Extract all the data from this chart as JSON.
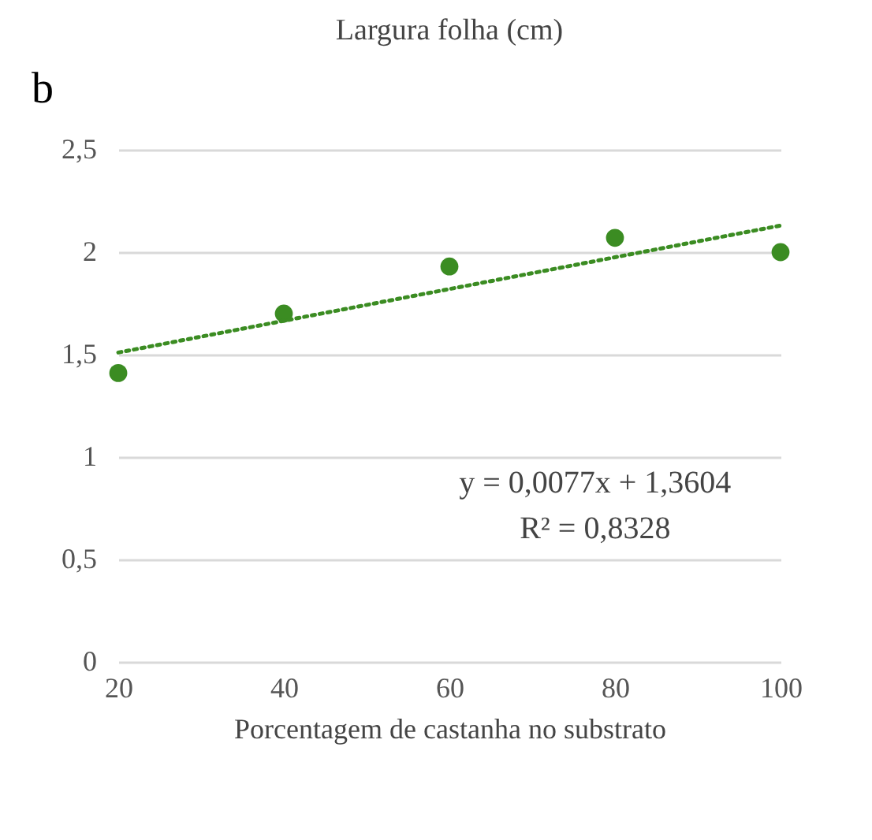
{
  "chart_data": {
    "type": "scatter",
    "title": "Largura folha (cm)",
    "xlabel": "Porcentagem de castanha no substrato",
    "annotations": [
      "b",
      "y = 0,0077x + 1,3604",
      "R² = 0,8328"
    ],
    "x": [
      20,
      40,
      60,
      80,
      100
    ],
    "series": [
      {
        "color": "#3b8c22",
        "values": [
          1.41,
          1.7,
          1.93,
          2.07,
          2.0
        ],
        "marker": "circle"
      },
      {
        "type": "line",
        "color": "#3b8c22",
        "x": [
          20,
          100
        ],
        "values": [
          1.51,
          2.13
        ],
        "marker": "none",
        "line_style": "dotted"
      }
    ],
    "xlim": [
      20,
      100
    ],
    "xticks": [
      20,
      40,
      60,
      80,
      100
    ],
    "ylim": [
      0,
      2.5
    ],
    "yticks": [
      0,
      {
        "value": 0.5,
        "label": "0,5"
      },
      1,
      {
        "value": 1.5,
        "label": "1,5"
      },
      2,
      {
        "value": 2.5,
        "label": "2,5"
      }
    ],
    "grid": "y"
  }
}
